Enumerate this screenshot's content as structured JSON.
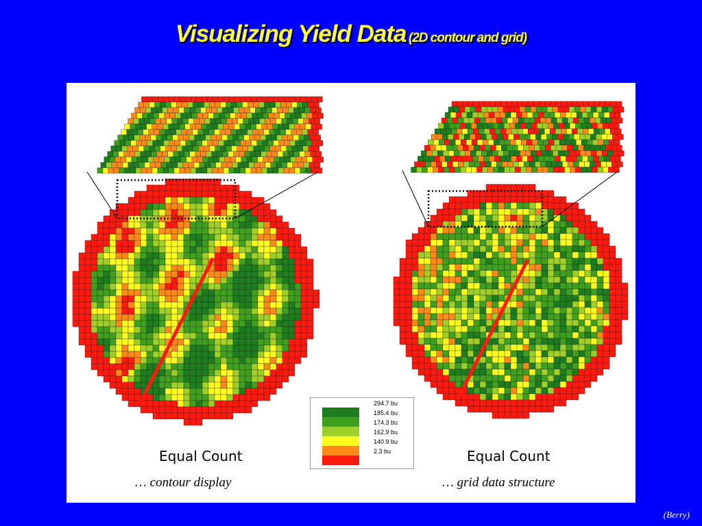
{
  "slide": {
    "title": "Visualizing Yield Data",
    "subtitle": "(2D contour and grid)",
    "credit": "(Berry)"
  },
  "colors": {
    "background": "#0000ff",
    "title": "#ffff33",
    "yield_classes": [
      "#1e7d1e",
      "#3fa020",
      "#9fd02a",
      "#ffff22",
      "#ff8a1a",
      "#ff1a10"
    ]
  },
  "legend": {
    "labels": [
      "294.7 bu",
      "185.4 bu",
      "174.3 bu",
      "162.9 bu",
      "140.9 bu",
      "2.3 bu"
    ]
  },
  "maps": {
    "left": {
      "caption": "Equal Count",
      "description": "… contour display"
    },
    "right": {
      "caption": "Equal Count",
      "description": "… grid data structure"
    }
  }
}
